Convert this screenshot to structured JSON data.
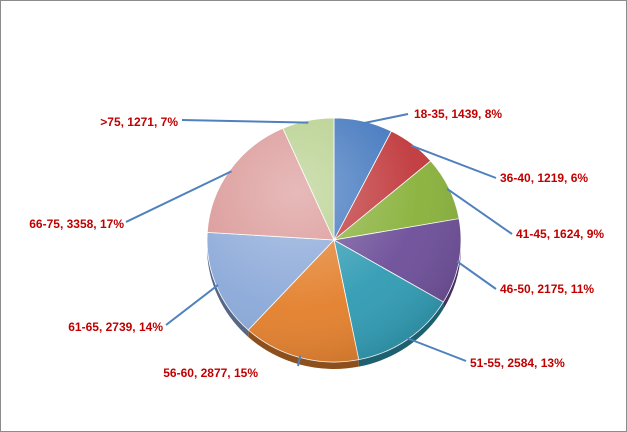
{
  "chart_data": {
    "type": "pie",
    "title": "",
    "slices": [
      {
        "label": "18-35",
        "value": 1439,
        "percent": "8%",
        "display": "18-35, 1439, 8%",
        "color": "#3f75bd"
      },
      {
        "label": "36-40",
        "value": 1219,
        "percent": "6%",
        "display": "36-40, 1219, 6%",
        "color": "#c0373a"
      },
      {
        "label": "41-45",
        "value": 1624,
        "percent": "9%",
        "display": "41-45, 1624, 9%",
        "color": "#88b13a"
      },
      {
        "label": "46-50",
        "value": 2175,
        "percent": "11%",
        "display": "46-50, 2175, 11%",
        "color": "#6c4d98"
      },
      {
        "label": "51-55",
        "value": 2584,
        "percent": "13%",
        "display": "51-55, 2584, 13%",
        "color": "#2f9bb3"
      },
      {
        "label": "56-60",
        "value": 2877,
        "percent": "15%",
        "display": "56-60, 2877, 15%",
        "color": "#e37f2b"
      },
      {
        "label": "61-65",
        "value": 2739,
        "percent": "14%",
        "display": "61-65, 2739, 14%",
        "color": "#8aa8d8"
      },
      {
        "label": "66-75",
        "value": 3358,
        "percent": "17%",
        "display": "66-75, 3358, 17%",
        "color": "#d99594"
      },
      {
        "label": ">75",
        "value": 1271,
        "percent": "7%",
        "display": ">75, 1271, 7%",
        "color": "#b5cf8a"
      }
    ],
    "label_color": "#c00000",
    "leader_line_color": "#4f81bd",
    "legend": "none"
  }
}
